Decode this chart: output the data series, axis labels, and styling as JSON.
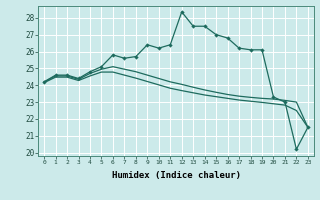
{
  "xlabel": "Humidex (Indice chaleur)",
  "bg_color": "#cceaea",
  "grid_color": "#ffffff",
  "line_color": "#1e6b5e",
  "xlim": [
    -0.5,
    23.5
  ],
  "ylim": [
    19.8,
    28.7
  ],
  "yticks": [
    20,
    21,
    22,
    23,
    24,
    25,
    26,
    27,
    28
  ],
  "xticks": [
    0,
    1,
    2,
    3,
    4,
    5,
    6,
    7,
    8,
    9,
    10,
    11,
    12,
    13,
    14,
    15,
    16,
    17,
    18,
    19,
    20,
    21,
    22,
    23
  ],
  "series1": [
    24.2,
    24.6,
    24.6,
    24.4,
    24.8,
    25.1,
    25.8,
    25.6,
    25.7,
    26.4,
    26.2,
    26.4,
    28.35,
    27.5,
    27.5,
    27.0,
    26.8,
    26.2,
    26.1,
    26.1,
    23.3,
    23.0,
    20.2,
    21.5
  ],
  "series2": [
    24.2,
    24.55,
    24.55,
    24.35,
    24.7,
    24.95,
    25.1,
    24.95,
    24.8,
    24.6,
    24.4,
    24.2,
    24.05,
    23.88,
    23.72,
    23.58,
    23.45,
    23.35,
    23.28,
    23.22,
    23.18,
    23.1,
    23.0,
    21.5
  ],
  "series3": [
    24.15,
    24.48,
    24.48,
    24.28,
    24.55,
    24.78,
    24.78,
    24.6,
    24.42,
    24.22,
    24.02,
    23.82,
    23.68,
    23.55,
    23.42,
    23.32,
    23.22,
    23.12,
    23.05,
    22.98,
    22.9,
    22.82,
    22.5,
    21.5
  ]
}
